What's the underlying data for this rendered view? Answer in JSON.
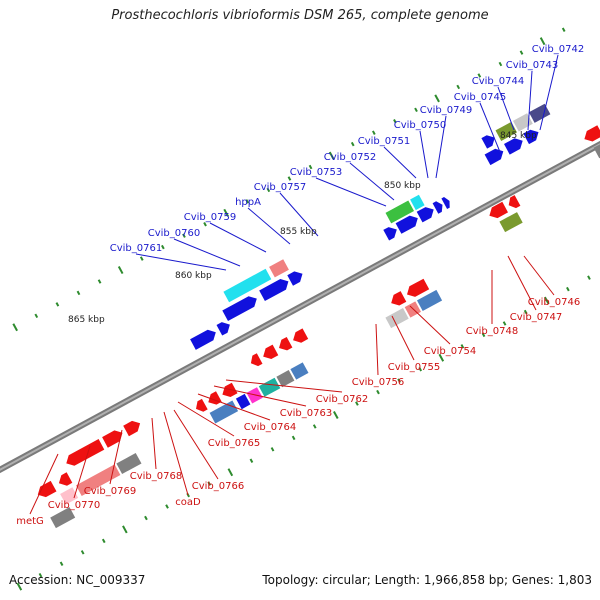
{
  "title": "Prosthecochloris vibrioformis DSM 265, complete genome",
  "footer": {
    "accession": "Accession: NC_009337",
    "summary": "Topology: circular; Length: 1,966,858 bp; Genes: 1,803"
  },
  "colors": {
    "backbone": "#7a7a7a",
    "label_upper": "#1a1acc",
    "label_lower": "#cc1111",
    "tick": "#2e8b2e",
    "red": "#ee1111",
    "blue": "#1111dd",
    "cyan": "#22e0ee",
    "salmon": "#f08080",
    "gray": "#808080",
    "lightgray": "#c8c8c8",
    "olive": "#7a9a2e",
    "green": "#3cc040",
    "steelblue": "#4a7fc0",
    "magenta": "#ff33cc",
    "slate": "#4a4a8a",
    "teal": "#20b0a0"
  },
  "kbp_labels": [
    "845 kbp",
    "850 kbp",
    "855 kbp",
    "860 kbp",
    "865 kbp"
  ],
  "upper_labels": [
    "Cvib_0742",
    "Cvib_0743",
    "Cvib_0744",
    "Cvib_0745",
    "Cvib_0749",
    "Cvib_0750",
    "Cvib_0751",
    "Cvib_0752",
    "Cvib_0753",
    "Cvib_0757",
    "hppA",
    "Cvib_0759",
    "Cvib_0760",
    "Cvib_0761"
  ],
  "lower_labels": [
    "Cvib_0746",
    "Cvib_0747",
    "Cvib_0748",
    "Cvib_0754",
    "Cvib_0755",
    "Cvib_0756",
    "Cvib_0762",
    "Cvib_0763",
    "Cvib_0764",
    "Cvib_0765",
    "Cvib_0766",
    "coaD",
    "Cvib_0768",
    "Cvib_0769",
    "Cvib_0770",
    "metG"
  ]
}
